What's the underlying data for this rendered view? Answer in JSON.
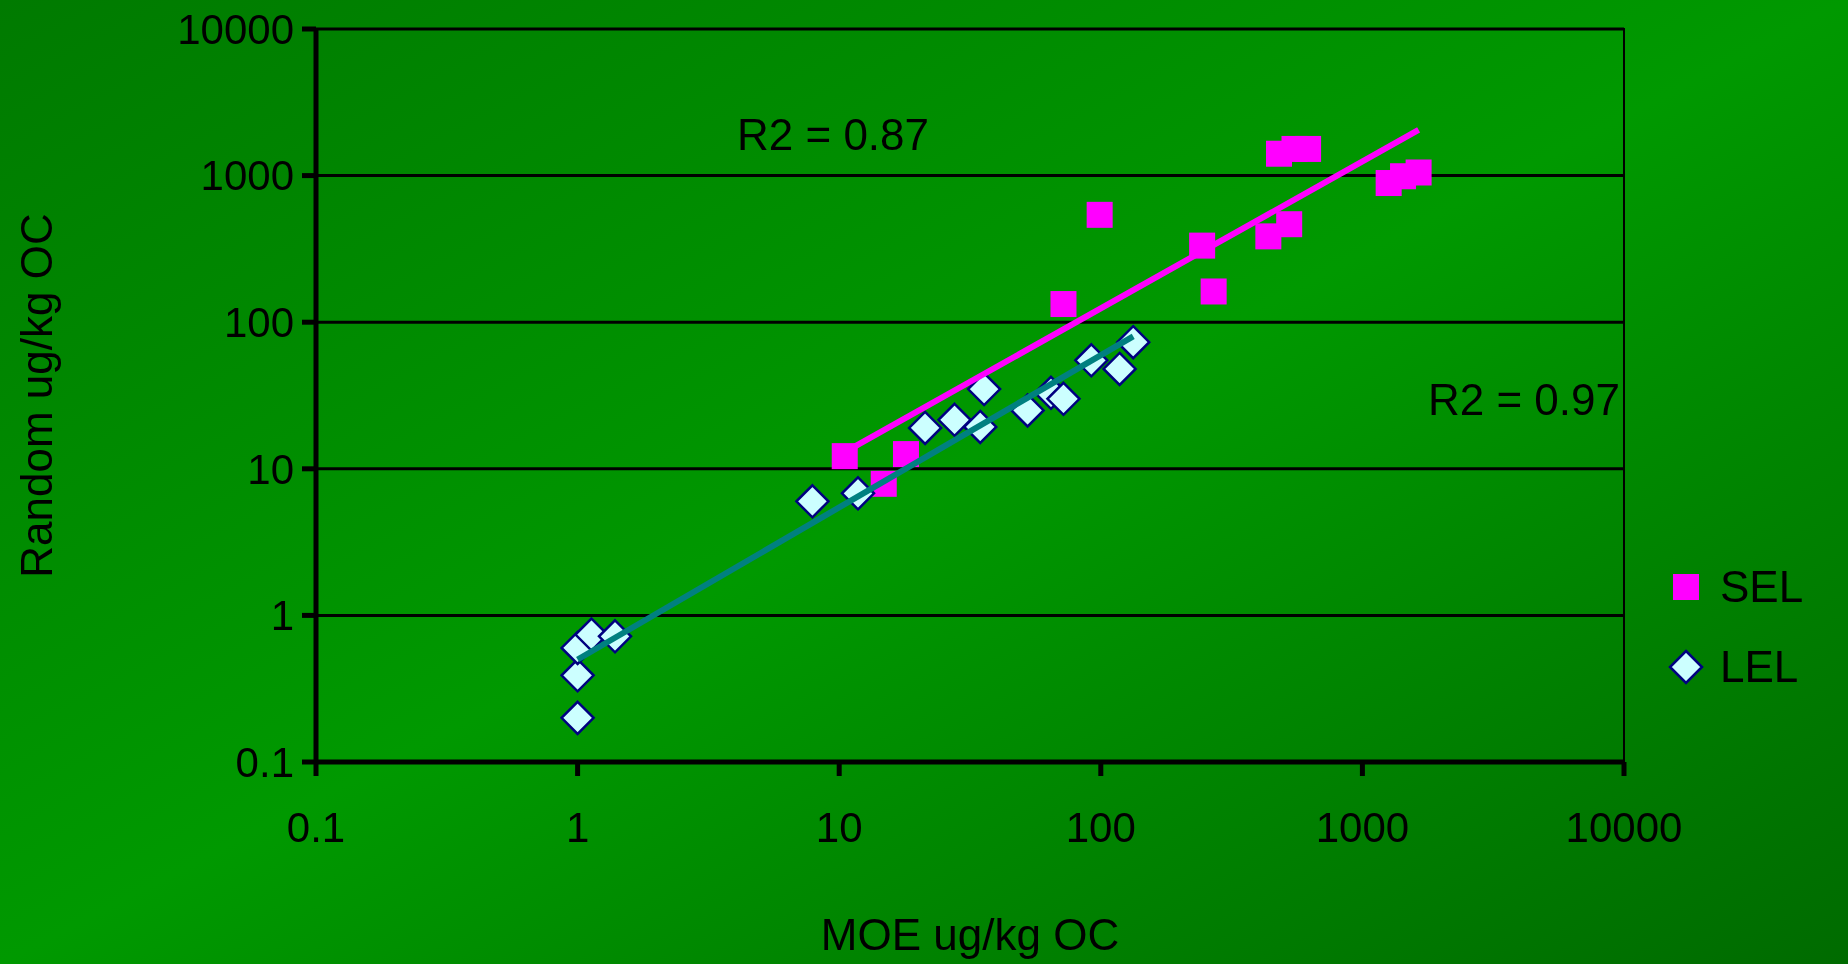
{
  "chart_data": {
    "type": "scatter",
    "xlabel": "MOE ug/kg OC",
    "ylabel": "Random ug/kg OC",
    "log": "xy",
    "xlim": [
      0.1,
      10000
    ],
    "ylim": [
      0.1,
      10000
    ],
    "xticks": [
      0.1,
      1,
      10,
      100,
      1000,
      10000
    ],
    "yticks": [
      0.1,
      1,
      10,
      100,
      1000,
      10000
    ],
    "grid": "y",
    "legend": "right",
    "annotations": [
      "R2 = 0.87",
      "R2 = 0.97"
    ],
    "series": [
      {
        "name": "SEL",
        "marker": "square",
        "color": "#ff00ff",
        "x": [
          10.5,
          14.8,
          18,
          72,
          99,
          244,
          270,
          437,
          525,
          480,
          550,
          620,
          1260,
          1430,
          1640
        ],
        "values": [
          12.2,
          7.9,
          12.6,
          133,
          540,
          333,
          162,
          385,
          466,
          1410,
          1520,
          1520,
          890,
          990,
          1050
        ]
      },
      {
        "name": "LEL",
        "marker": "diamond",
        "color": "#ccffff",
        "x": [
          1,
          1,
          1,
          1.13,
          1.39,
          7.9,
          11.8,
          21.3,
          27.6,
          35.8,
          34.6,
          52.5,
          64.5,
          72,
          92,
          118,
          133
        ],
        "values": [
          0.2,
          0.39,
          0.6,
          0.74,
          0.72,
          6,
          6.8,
          19,
          21.6,
          35,
          19.3,
          25,
          33,
          30,
          55,
          48,
          73
        ]
      },
      {
        "type": "line",
        "color": "#ff00ff",
        "x": [
          10.5,
          1640
        ],
        "values": [
          13,
          2050
        ]
      },
      {
        "type": "line",
        "color": "#008080",
        "x": [
          1,
          133
        ],
        "values": [
          0.5,
          80
        ]
      }
    ]
  }
}
